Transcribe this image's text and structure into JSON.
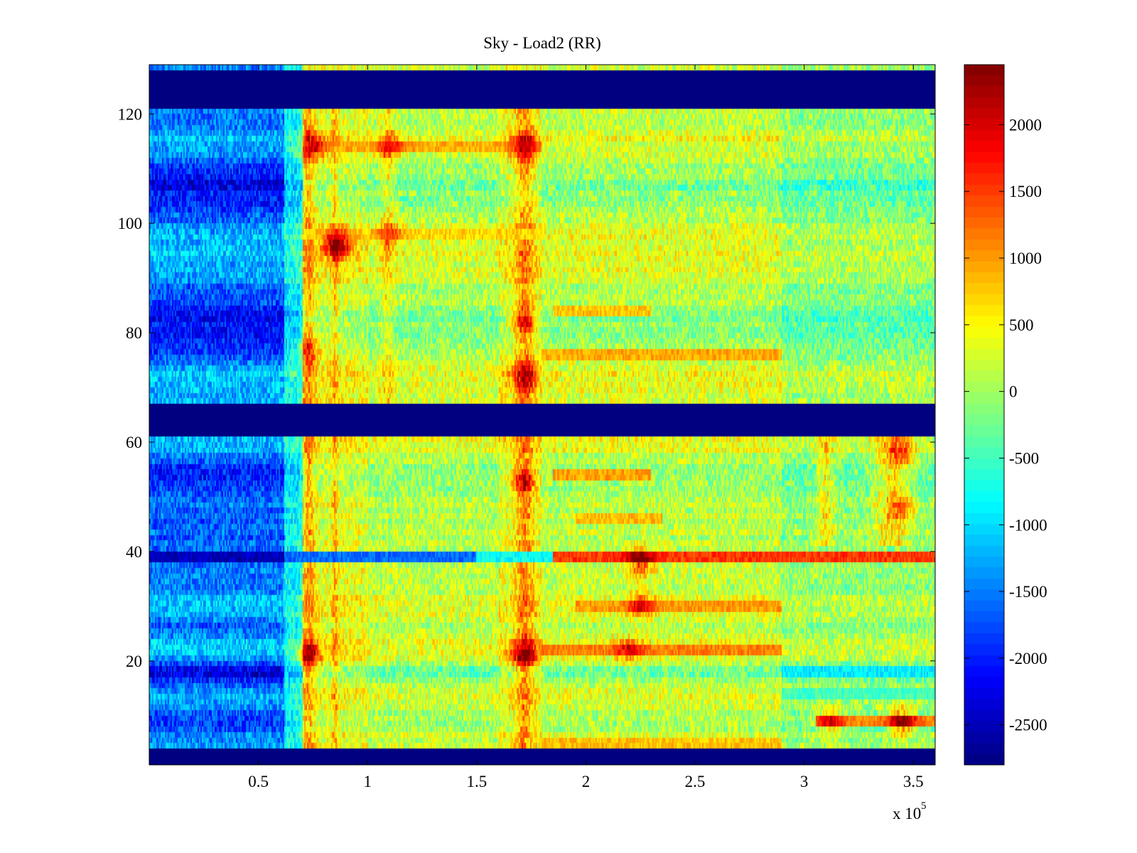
{
  "figure": {
    "background": "#ffffff"
  },
  "chart_data": {
    "type": "heatmap",
    "title": "Sky - Load2 (RR)",
    "xlabel": "",
    "ylabel": "",
    "x_multiplier_label": "x 10",
    "x_multiplier_exponent": "5",
    "xlim": [
      0,
      360000
    ],
    "ylim": [
      1,
      129
    ],
    "x_ticks": [
      {
        "value": 50000,
        "label": "0.5"
      },
      {
        "value": 100000,
        "label": "1"
      },
      {
        "value": 150000,
        "label": "1.5"
      },
      {
        "value": 200000,
        "label": "2"
      },
      {
        "value": 250000,
        "label": "2.5"
      },
      {
        "value": 300000,
        "label": "3"
      },
      {
        "value": 350000,
        "label": "3.5"
      }
    ],
    "y_ticks": [
      {
        "value": 20,
        "label": "20"
      },
      {
        "value": 40,
        "label": "40"
      },
      {
        "value": 60,
        "label": "60"
      },
      {
        "value": 80,
        "label": "80"
      },
      {
        "value": 100,
        "label": "100"
      },
      {
        "value": 120,
        "label": "120"
      }
    ],
    "colorbar": {
      "colormap": "jet",
      "clim": [
        -2800,
        2450
      ],
      "ticks": [
        {
          "value": 2000,
          "label": "2000"
        },
        {
          "value": 1500,
          "label": "1500"
        },
        {
          "value": 1000,
          "label": "1000"
        },
        {
          "value": 500,
          "label": "500"
        },
        {
          "value": 0,
          "label": "0"
        },
        {
          "value": -500,
          "label": "-500"
        },
        {
          "value": -1000,
          "label": "-1000"
        },
        {
          "value": -1500,
          "label": "-1500"
        },
        {
          "value": -2000,
          "label": "-2000"
        },
        {
          "value": -2500,
          "label": "-2500"
        }
      ]
    },
    "empty_rows": [
      [
        1,
        4
      ],
      [
        62,
        67
      ],
      [
        122,
        128
      ]
    ],
    "empty_value": -2800,
    "time_segments": [
      {
        "x_start": 0,
        "x_end": 62000,
        "level": -1300
      },
      {
        "x_start": 62000,
        "x_end": 70000,
        "level": -700
      },
      {
        "x_start": 70000,
        "x_end": 100000,
        "level": 450
      },
      {
        "x_start": 100000,
        "x_end": 160000,
        "level": 250
      },
      {
        "x_start": 160000,
        "x_end": 180000,
        "level": 500
      },
      {
        "x_start": 180000,
        "x_end": 290000,
        "level": 300
      },
      {
        "x_start": 290000,
        "x_end": 360000,
        "level": 50
      }
    ],
    "row_offsets": [
      {
        "y": 5,
        "offset": 0
      },
      {
        "y": 9,
        "offset": -300
      },
      {
        "y": 13,
        "offset": 100
      },
      {
        "y": 18,
        "offset": -500
      },
      {
        "y": 22,
        "offset": 200
      },
      {
        "y": 26,
        "offset": -200
      },
      {
        "y": 30,
        "offset": 100
      },
      {
        "y": 35,
        "offset": -100
      },
      {
        "y": 46,
        "offset": -200
      },
      {
        "y": 50,
        "offset": -100
      },
      {
        "y": 54,
        "offset": -400
      },
      {
        "y": 58,
        "offset": 0
      },
      {
        "y": 72,
        "offset": 100
      },
      {
        "y": 76,
        "offset": -300
      },
      {
        "y": 84,
        "offset": -400
      },
      {
        "y": 90,
        "offset": 0
      },
      {
        "y": 96,
        "offset": 100
      },
      {
        "y": 102,
        "offset": -200
      },
      {
        "y": 108,
        "offset": -500
      },
      {
        "y": 114,
        "offset": 100
      },
      {
        "y": 118,
        "offset": -100
      }
    ],
    "vertical_stripes": [
      {
        "x": 73000,
        "width": 3000,
        "amplitude": 700,
        "y_range": [
          5,
          121
        ]
      },
      {
        "x": 85000,
        "width": 1500,
        "amplitude": 600,
        "y_range": [
          5,
          121
        ]
      },
      {
        "x": 109000,
        "width": 3000,
        "amplitude": 500,
        "y_range": [
          68,
          121
        ]
      },
      {
        "x": 172000,
        "width": 4000,
        "amplitude": 800,
        "y_range": [
          5,
          121
        ]
      },
      {
        "x": 310000,
        "width": 4000,
        "amplitude": 700,
        "y_range": [
          42,
          61
        ]
      },
      {
        "x": 340000,
        "width": 8000,
        "amplitude": 800,
        "y_range": [
          42,
          61
        ]
      }
    ],
    "hot_spots": [
      {
        "x": 75000,
        "y": 114,
        "intensity": 1200
      },
      {
        "x": 110000,
        "y": 114,
        "intensity": 1000
      },
      {
        "x": 172000,
        "y": 114,
        "intensity": 1300
      },
      {
        "x": 86000,
        "y": 96,
        "intensity": 2200
      },
      {
        "x": 110000,
        "y": 98,
        "intensity": 900
      },
      {
        "x": 172000,
        "y": 82,
        "intensity": 1200
      },
      {
        "x": 172000,
        "y": 72,
        "intensity": 1300
      },
      {
        "x": 73000,
        "y": 77,
        "intensity": 1000
      },
      {
        "x": 73000,
        "y": 21,
        "intensity": 1400
      },
      {
        "x": 172000,
        "y": 21,
        "intensity": 1600
      },
      {
        "x": 172000,
        "y": 53,
        "intensity": 1300
      },
      {
        "x": 220000,
        "y": 22,
        "intensity": 900
      },
      {
        "x": 225000,
        "y": 30,
        "intensity": 1000
      },
      {
        "x": 225000,
        "y": 38,
        "intensity": 1400
      },
      {
        "x": 345000,
        "y": 9,
        "intensity": 1600
      },
      {
        "x": 312000,
        "y": 9,
        "intensity": 1000
      },
      {
        "x": 345000,
        "y": 58,
        "intensity": 1100
      },
      {
        "x": 345000,
        "y": 48,
        "intensity": 1000
      }
    ],
    "horizontal_bands": [
      {
        "y": 39,
        "x_start": 0,
        "x_end": 62000,
        "level": -2500
      },
      {
        "y": 39,
        "x_start": 62000,
        "x_end": 150000,
        "level": -1600
      },
      {
        "y": 39,
        "x_start": 150000,
        "x_end": 185000,
        "level": -800
      },
      {
        "y": 39,
        "x_start": 185000,
        "x_end": 360000,
        "level": 1500
      },
      {
        "y": 22,
        "x_start": 180000,
        "x_end": 290000,
        "level": 1150
      },
      {
        "y": 30,
        "x_start": 195000,
        "x_end": 290000,
        "level": 1000
      },
      {
        "y": 54,
        "x_start": 185000,
        "x_end": 230000,
        "level": 950
      },
      {
        "y": 46,
        "x_start": 195000,
        "x_end": 235000,
        "level": 850
      },
      {
        "y": 76,
        "x_start": 180000,
        "x_end": 290000,
        "level": 900
      },
      {
        "y": 84,
        "x_start": 185000,
        "x_end": 230000,
        "level": 800
      },
      {
        "y": 114,
        "x_start": 70000,
        "x_end": 180000,
        "level": 900
      },
      {
        "y": 98,
        "x_start": 70000,
        "x_end": 180000,
        "level": 700
      },
      {
        "y": 5,
        "x_start": 180000,
        "x_end": 290000,
        "level": 800
      },
      {
        "y": 9,
        "x_start": 305000,
        "x_end": 360000,
        "level": 1100
      },
      {
        "y": 18,
        "x_start": 290000,
        "x_end": 360000,
        "level": -900
      },
      {
        "y": 14,
        "x_start": 290000,
        "x_end": 360000,
        "level": -500
      }
    ]
  }
}
